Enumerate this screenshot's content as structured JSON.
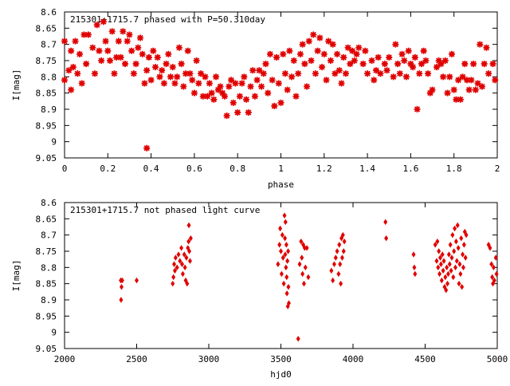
{
  "chart_data": [
    {
      "type": "scatter",
      "title": "215301+1715.7 phased with P=50.310day",
      "xlabel": "phase",
      "ylabel": "I[mag]",
      "xlim": [
        0,
        2
      ],
      "ylim": [
        9.05,
        8.6
      ],
      "x_ticks": [
        "0",
        "0.2",
        "0.4",
        "0.6",
        "0.8",
        "1",
        "1.2",
        "1.4",
        "1.6",
        "1.8",
        "2"
      ],
      "y_ticks": [
        "8.6",
        "8.65",
        "8.7",
        "8.75",
        "8.8",
        "8.85",
        "8.9",
        "8.95",
        "9",
        "9.05"
      ],
      "marker": "star",
      "color": "#e00000",
      "points": [
        [
          0.0,
          8.69
        ],
        [
          0.0,
          8.81
        ],
        [
          0.02,
          8.78
        ],
        [
          0.03,
          8.72
        ],
        [
          0.03,
          8.84
        ],
        [
          0.04,
          8.77
        ],
        [
          0.05,
          8.69
        ],
        [
          0.06,
          8.79
        ],
        [
          0.07,
          8.73
        ],
        [
          0.08,
          8.82
        ],
        [
          0.09,
          8.67
        ],
        [
          0.1,
          8.76
        ],
        [
          0.11,
          8.67
        ],
        [
          0.13,
          8.71
        ],
        [
          0.14,
          8.79
        ],
        [
          0.15,
          8.64
        ],
        [
          0.16,
          8.72
        ],
        [
          0.17,
          8.75
        ],
        [
          0.18,
          8.63
        ],
        [
          0.19,
          8.69
        ],
        [
          0.2,
          8.72
        ],
        [
          0.21,
          8.75
        ],
        [
          0.22,
          8.66
        ],
        [
          0.23,
          8.79
        ],
        [
          0.24,
          8.74
        ],
        [
          0.25,
          8.69
        ],
        [
          0.26,
          8.74
        ],
        [
          0.27,
          8.66
        ],
        [
          0.28,
          8.76
        ],
        [
          0.29,
          8.69
        ],
        [
          0.3,
          8.67
        ],
        [
          0.31,
          8.72
        ],
        [
          0.32,
          8.79
        ],
        [
          0.33,
          8.76
        ],
        [
          0.34,
          8.71
        ],
        [
          0.35,
          8.68
        ],
        [
          0.36,
          8.73
        ],
        [
          0.37,
          8.82
        ],
        [
          0.38,
          8.78
        ],
        [
          0.38,
          9.02
        ],
        [
          0.39,
          8.74
        ],
        [
          0.4,
          8.81
        ],
        [
          0.41,
          8.72
        ],
        [
          0.42,
          8.77
        ],
        [
          0.43,
          8.74
        ],
        [
          0.44,
          8.8
        ],
        [
          0.45,
          8.78
        ],
        [
          0.46,
          8.82
        ],
        [
          0.47,
          8.76
        ],
        [
          0.48,
          8.73
        ],
        [
          0.49,
          8.8
        ],
        [
          0.5,
          8.77
        ],
        [
          0.51,
          8.82
        ],
        [
          0.52,
          8.8
        ],
        [
          0.53,
          8.71
        ],
        [
          0.54,
          8.76
        ],
        [
          0.55,
          8.83
        ],
        [
          0.56,
          8.79
        ],
        [
          0.57,
          8.72
        ],
        [
          0.58,
          8.79
        ],
        [
          0.59,
          8.81
        ],
        [
          0.6,
          8.85
        ],
        [
          0.61,
          8.75
        ],
        [
          0.62,
          8.82
        ],
        [
          0.63,
          8.79
        ],
        [
          0.64,
          8.86
        ],
        [
          0.65,
          8.8
        ],
        [
          0.66,
          8.86
        ],
        [
          0.67,
          8.82
        ],
        [
          0.68,
          8.85
        ],
        [
          0.69,
          8.87
        ],
        [
          0.7,
          8.8
        ],
        [
          0.71,
          8.84
        ],
        [
          0.72,
          8.83
        ],
        [
          0.73,
          8.85
        ],
        [
          0.74,
          8.86
        ],
        [
          0.75,
          8.92
        ],
        [
          0.76,
          8.83
        ],
        [
          0.77,
          8.81
        ],
        [
          0.78,
          8.88
        ],
        [
          0.79,
          8.82
        ],
        [
          0.8,
          8.91
        ],
        [
          0.81,
          8.86
        ],
        [
          0.82,
          8.82
        ],
        [
          0.83,
          8.8
        ],
        [
          0.84,
          8.87
        ],
        [
          0.85,
          8.91
        ],
        [
          0.86,
          8.83
        ],
        [
          0.87,
          8.78
        ],
        [
          0.88,
          8.86
        ],
        [
          0.89,
          8.81
        ],
        [
          0.9,
          8.78
        ],
        [
          0.91,
          8.83
        ],
        [
          0.92,
          8.79
        ],
        [
          0.93,
          8.76
        ],
        [
          0.94,
          8.85
        ],
        [
          0.95,
          8.73
        ],
        [
          0.96,
          8.81
        ],
        [
          0.97,
          8.89
        ],
        [
          0.98,
          8.74
        ],
        [
          0.99,
          8.82
        ],
        [
          1.0,
          8.88
        ],
        [
          1.01,
          8.73
        ],
        [
          1.02,
          8.79
        ],
        [
          1.03,
          8.84
        ],
        [
          1.04,
          8.72
        ],
        [
          1.05,
          8.8
        ],
        [
          1.06,
          8.75
        ],
        [
          1.07,
          8.86
        ],
        [
          1.08,
          8.79
        ],
        [
          1.09,
          8.73
        ],
        [
          1.1,
          8.7
        ],
        [
          1.11,
          8.76
        ],
        [
          1.12,
          8.83
        ],
        [
          1.13,
          8.69
        ],
        [
          1.14,
          8.75
        ],
        [
          1.15,
          8.67
        ],
        [
          1.16,
          8.79
        ],
        [
          1.17,
          8.72
        ],
        [
          1.18,
          8.68
        ],
        [
          1.19,
          8.77
        ],
        [
          1.2,
          8.73
        ],
        [
          1.21,
          8.81
        ],
        [
          1.22,
          8.69
        ],
        [
          1.23,
          8.75
        ],
        [
          1.24,
          8.7
        ],
        [
          1.25,
          8.79
        ],
        [
          1.26,
          8.73
        ],
        [
          1.27,
          8.78
        ],
        [
          1.28,
          8.82
        ],
        [
          1.29,
          8.74
        ],
        [
          1.3,
          8.79
        ],
        [
          1.31,
          8.71
        ],
        [
          1.32,
          8.76
        ],
        [
          1.33,
          8.72
        ],
        [
          1.34,
          8.75
        ],
        [
          1.35,
          8.73
        ],
        [
          1.36,
          8.71
        ],
        [
          1.38,
          8.76
        ],
        [
          1.39,
          8.72
        ],
        [
          1.4,
          8.79
        ],
        [
          1.42,
          8.75
        ],
        [
          1.43,
          8.81
        ],
        [
          1.44,
          8.78
        ],
        [
          1.45,
          8.74
        ],
        [
          1.46,
          8.79
        ],
        [
          1.48,
          8.76
        ],
        [
          1.49,
          8.78
        ],
        [
          1.5,
          8.74
        ],
        [
          1.52,
          8.8
        ],
        [
          1.53,
          8.7
        ],
        [
          1.54,
          8.76
        ],
        [
          1.55,
          8.79
        ],
        [
          1.56,
          8.73
        ],
        [
          1.57,
          8.75
        ],
        [
          1.58,
          8.8
        ],
        [
          1.59,
          8.72
        ],
        [
          1.6,
          8.76
        ],
        [
          1.61,
          8.77
        ],
        [
          1.62,
          8.74
        ],
        [
          1.63,
          8.9
        ],
        [
          1.64,
          8.79
        ],
        [
          1.65,
          8.76
        ],
        [
          1.66,
          8.72
        ],
        [
          1.67,
          8.75
        ],
        [
          1.68,
          8.79
        ],
        [
          1.69,
          8.85
        ],
        [
          1.7,
          8.84
        ],
        [
          1.72,
          8.77
        ],
        [
          1.73,
          8.75
        ],
        [
          1.74,
          8.76
        ],
        [
          1.75,
          8.8
        ],
        [
          1.76,
          8.75
        ],
        [
          1.77,
          8.85
        ],
        [
          1.78,
          8.8
        ],
        [
          1.79,
          8.73
        ],
        [
          1.8,
          8.84
        ],
        [
          1.81,
          8.87
        ],
        [
          1.82,
          8.81
        ],
        [
          1.83,
          8.87
        ],
        [
          1.84,
          8.8
        ],
        [
          1.85,
          8.76
        ],
        [
          1.86,
          8.81
        ],
        [
          1.87,
          8.84
        ],
        [
          1.88,
          8.81
        ],
        [
          1.89,
          8.76
        ],
        [
          1.9,
          8.84
        ],
        [
          1.91,
          8.82
        ],
        [
          1.92,
          8.7
        ],
        [
          1.93,
          8.83
        ],
        [
          1.94,
          8.76
        ],
        [
          1.95,
          8.71
        ],
        [
          1.96,
          8.79
        ],
        [
          1.98,
          8.76
        ],
        [
          1.99,
          8.81
        ]
      ]
    },
    {
      "type": "scatter",
      "title": "215301+1715.7 not phased light curve",
      "xlabel": "hjd0",
      "ylabel": "I[mag]",
      "xlim": [
        2000,
        5000
      ],
      "ylim": [
        9.05,
        8.6
      ],
      "x_ticks": [
        "2000",
        "2500",
        "3000",
        "3500",
        "4000",
        "4500",
        "5000"
      ],
      "y_ticks": [
        "8.6",
        "8.65",
        "8.7",
        "8.75",
        "8.8",
        "8.85",
        "8.9",
        "8.95",
        "9",
        "9.05"
      ],
      "marker": "diamond",
      "color": "#e00000",
      "points": [
        [
          2390,
          8.84
        ],
        [
          2392,
          8.9
        ],
        [
          2395,
          8.86
        ],
        [
          2400,
          8.84
        ],
        [
          2500,
          8.84
        ],
        [
          2750,
          8.85
        ],
        [
          2755,
          8.83
        ],
        [
          2760,
          8.79
        ],
        [
          2765,
          8.81
        ],
        [
          2770,
          8.77
        ],
        [
          2780,
          8.8
        ],
        [
          2790,
          8.76
        ],
        [
          2800,
          8.78
        ],
        [
          2810,
          8.74
        ],
        [
          2815,
          8.79
        ],
        [
          2820,
          8.82
        ],
        [
          2830,
          8.76
        ],
        [
          2835,
          8.8
        ],
        [
          2840,
          8.84
        ],
        [
          2845,
          8.77
        ],
        [
          2850,
          8.85
        ],
        [
          2855,
          8.74
        ],
        [
          2860,
          8.72
        ],
        [
          2862,
          8.67
        ],
        [
          2865,
          8.75
        ],
        [
          2870,
          8.78
        ],
        [
          2875,
          8.71
        ],
        [
          3480,
          8.79
        ],
        [
          3490,
          8.73
        ],
        [
          3495,
          8.68
        ],
        [
          3500,
          8.75
        ],
        [
          3505,
          8.82
        ],
        [
          3510,
          8.7
        ],
        [
          3515,
          8.77
        ],
        [
          3520,
          8.85
        ],
        [
          3525,
          8.64
        ],
        [
          3528,
          8.71
        ],
        [
          3530,
          8.76
        ],
        [
          3532,
          8.66
        ],
        [
          3535,
          8.8
        ],
        [
          3538,
          8.73
        ],
        [
          3540,
          8.83
        ],
        [
          3542,
          8.88
        ],
        [
          3545,
          8.78
        ],
        [
          3548,
          8.92
        ],
        [
          3550,
          8.75
        ],
        [
          3552,
          8.86
        ],
        [
          3555,
          8.91
        ],
        [
          3620,
          9.02
        ],
        [
          3630,
          8.79
        ],
        [
          3640,
          8.72
        ],
        [
          3645,
          8.77
        ],
        [
          3650,
          8.82
        ],
        [
          3655,
          8.73
        ],
        [
          3660,
          8.85
        ],
        [
          3665,
          8.74
        ],
        [
          3670,
          8.8
        ],
        [
          3680,
          8.74
        ],
        [
          3690,
          8.83
        ],
        [
          3850,
          8.81
        ],
        [
          3860,
          8.84
        ],
        [
          3870,
          8.79
        ],
        [
          3880,
          8.77
        ],
        [
          3890,
          8.75
        ],
        [
          3900,
          8.82
        ],
        [
          3905,
          8.73
        ],
        [
          3910,
          8.79
        ],
        [
          3915,
          8.85
        ],
        [
          3920,
          8.71
        ],
        [
          3925,
          8.77
        ],
        [
          3930,
          8.7
        ],
        [
          3935,
          8.75
        ],
        [
          3940,
          8.72
        ],
        [
          4225,
          8.66
        ],
        [
          4230,
          8.71
        ],
        [
          4420,
          8.76
        ],
        [
          4425,
          8.8
        ],
        [
          4430,
          8.82
        ],
        [
          4570,
          8.73
        ],
        [
          4580,
          8.78
        ],
        [
          4585,
          8.72
        ],
        [
          4590,
          8.8
        ],
        [
          4595,
          8.75
        ],
        [
          4600,
          8.82
        ],
        [
          4605,
          8.77
        ],
        [
          4610,
          8.79
        ],
        [
          4615,
          8.84
        ],
        [
          4620,
          8.76
        ],
        [
          4625,
          8.81
        ],
        [
          4630,
          8.78
        ],
        [
          4635,
          8.86
        ],
        [
          4640,
          8.83
        ],
        [
          4645,
          8.87
        ],
        [
          4650,
          8.8
        ],
        [
          4655,
          8.85
        ],
        [
          4660,
          8.82
        ],
        [
          4665,
          8.76
        ],
        [
          4670,
          8.79
        ],
        [
          4675,
          8.73
        ],
        [
          4680,
          8.81
        ],
        [
          4685,
          8.77
        ],
        [
          4690,
          8.7
        ],
        [
          4695,
          8.83
        ],
        [
          4700,
          8.75
        ],
        [
          4705,
          8.68
        ],
        [
          4710,
          8.8
        ],
        [
          4715,
          8.72
        ],
        [
          4720,
          8.78
        ],
        [
          4725,
          8.67
        ],
        [
          4730,
          8.74
        ],
        [
          4735,
          8.85
        ],
        [
          4740,
          8.79
        ],
        [
          4745,
          8.82
        ],
        [
          4750,
          8.71
        ],
        [
          4755,
          8.86
        ],
        [
          4760,
          8.76
        ],
        [
          4765,
          8.8
        ],
        [
          4770,
          8.73
        ],
        [
          4775,
          8.69
        ],
        [
          4780,
          8.77
        ],
        [
          4785,
          8.7
        ],
        [
          4940,
          8.73
        ],
        [
          4950,
          8.74
        ],
        [
          4960,
          8.79
        ],
        [
          4965,
          8.83
        ],
        [
          4970,
          8.85
        ],
        [
          4975,
          8.8
        ],
        [
          4980,
          8.84
        ],
        [
          4990,
          8.77
        ],
        [
          4995,
          8.82
        ]
      ]
    }
  ]
}
